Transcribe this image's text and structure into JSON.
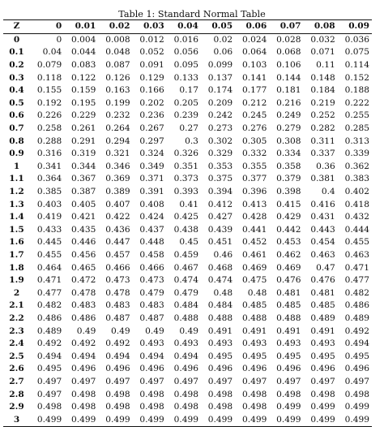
{
  "caption": "Table 1: Standard Normal Table",
  "header": [
    "Z",
    "0",
    "0.01",
    "0.02",
    "0.03",
    "0.04",
    "0.05",
    "0.06",
    "0.07",
    "0.08",
    "0.09"
  ],
  "rows": [
    [
      "0",
      "0",
      "0.004",
      "0.008",
      "0.012",
      "0.016",
      "0.02",
      "0.024",
      "0.028",
      "0.032",
      "0.036"
    ],
    [
      "0.1",
      "0.04",
      "0.044",
      "0.048",
      "0.052",
      "0.056",
      "0.06",
      "0.064",
      "0.068",
      "0.071",
      "0.075"
    ],
    [
      "0.2",
      "0.079",
      "0.083",
      "0.087",
      "0.091",
      "0.095",
      "0.099",
      "0.103",
      "0.106",
      "0.11",
      "0.114"
    ],
    [
      "0.3",
      "0.118",
      "0.122",
      "0.126",
      "0.129",
      "0.133",
      "0.137",
      "0.141",
      "0.144",
      "0.148",
      "0.152"
    ],
    [
      "0.4",
      "0.155",
      "0.159",
      "0.163",
      "0.166",
      "0.17",
      "0.174",
      "0.177",
      "0.181",
      "0.184",
      "0.188"
    ],
    [
      "0.5",
      "0.192",
      "0.195",
      "0.199",
      "0.202",
      "0.205",
      "0.209",
      "0.212",
      "0.216",
      "0.219",
      "0.222"
    ],
    [
      "0.6",
      "0.226",
      "0.229",
      "0.232",
      "0.236",
      "0.239",
      "0.242",
      "0.245",
      "0.249",
      "0.252",
      "0.255"
    ],
    [
      "0.7",
      "0.258",
      "0.261",
      "0.264",
      "0.267",
      "0.27",
      "0.273",
      "0.276",
      "0.279",
      "0.282",
      "0.285"
    ],
    [
      "0.8",
      "0.288",
      "0.291",
      "0.294",
      "0.297",
      "0.3",
      "0.302",
      "0.305",
      "0.308",
      "0.311",
      "0.313"
    ],
    [
      "0.9",
      "0.316",
      "0.319",
      "0.321",
      "0.324",
      "0.326",
      "0.329",
      "0.332",
      "0.334",
      "0.337",
      "0.339"
    ],
    [
      "1",
      "0.341",
      "0.344",
      "0.346",
      "0.349",
      "0.351",
      "0.353",
      "0.355",
      "0.358",
      "0.36",
      "0.362"
    ],
    [
      "1.1",
      "0.364",
      "0.367",
      "0.369",
      "0.371",
      "0.373",
      "0.375",
      "0.377",
      "0.379",
      "0.381",
      "0.383"
    ],
    [
      "1.2",
      "0.385",
      "0.387",
      "0.389",
      "0.391",
      "0.393",
      "0.394",
      "0.396",
      "0.398",
      "0.4",
      "0.402"
    ],
    [
      "1.3",
      "0.403",
      "0.405",
      "0.407",
      "0.408",
      "0.41",
      "0.412",
      "0.413",
      "0.415",
      "0.416",
      "0.418"
    ],
    [
      "1.4",
      "0.419",
      "0.421",
      "0.422",
      "0.424",
      "0.425",
      "0.427",
      "0.428",
      "0.429",
      "0.431",
      "0.432"
    ],
    [
      "1.5",
      "0.433",
      "0.435",
      "0.436",
      "0.437",
      "0.438",
      "0.439",
      "0.441",
      "0.442",
      "0.443",
      "0.444"
    ],
    [
      "1.6",
      "0.445",
      "0.446",
      "0.447",
      "0.448",
      "0.45",
      "0.451",
      "0.452",
      "0.453",
      "0.454",
      "0.455"
    ],
    [
      "1.7",
      "0.455",
      "0.456",
      "0.457",
      "0.458",
      "0.459",
      "0.46",
      "0.461",
      "0.462",
      "0.463",
      "0.463"
    ],
    [
      "1.8",
      "0.464",
      "0.465",
      "0.466",
      "0.466",
      "0.467",
      "0.468",
      "0.469",
      "0.469",
      "0.47",
      "0.471"
    ],
    [
      "1.9",
      "0.471",
      "0.472",
      "0.473",
      "0.473",
      "0.474",
      "0.474",
      "0.475",
      "0.476",
      "0.476",
      "0.477"
    ],
    [
      "2",
      "0.477",
      "0.478",
      "0.478",
      "0.479",
      "0.479",
      "0.48",
      "0.48",
      "0.481",
      "0.481",
      "0.482"
    ],
    [
      "2.1",
      "0.482",
      "0.483",
      "0.483",
      "0.483",
      "0.484",
      "0.484",
      "0.485",
      "0.485",
      "0.485",
      "0.486"
    ],
    [
      "2.2",
      "0.486",
      "0.486",
      "0.487",
      "0.487",
      "0.488",
      "0.488",
      "0.488",
      "0.488",
      "0.489",
      "0.489"
    ],
    [
      "2.3",
      "0.489",
      "0.49",
      "0.49",
      "0.49",
      "0.49",
      "0.491",
      "0.491",
      "0.491",
      "0.491",
      "0.492"
    ],
    [
      "2.4",
      "0.492",
      "0.492",
      "0.492",
      "0.493",
      "0.493",
      "0.493",
      "0.493",
      "0.493",
      "0.493",
      "0.494"
    ],
    [
      "2.5",
      "0.494",
      "0.494",
      "0.494",
      "0.494",
      "0.494",
      "0.495",
      "0.495",
      "0.495",
      "0.495",
      "0.495"
    ],
    [
      "2.6",
      "0.495",
      "0.496",
      "0.496",
      "0.496",
      "0.496",
      "0.496",
      "0.496",
      "0.496",
      "0.496",
      "0.496"
    ],
    [
      "2.7",
      "0.497",
      "0.497",
      "0.497",
      "0.497",
      "0.497",
      "0.497",
      "0.497",
      "0.497",
      "0.497",
      "0.497"
    ],
    [
      "2.8",
      "0.497",
      "0.498",
      "0.498",
      "0.498",
      "0.498",
      "0.498",
      "0.498",
      "0.498",
      "0.498",
      "0.498"
    ],
    [
      "2.9",
      "0.498",
      "0.498",
      "0.498",
      "0.498",
      "0.498",
      "0.498",
      "0.498",
      "0.499",
      "0.499",
      "0.499"
    ],
    [
      "3",
      "0.499",
      "0.499",
      "0.499",
      "0.499",
      "0.499",
      "0.499",
      "0.499",
      "0.499",
      "0.499",
      "0.499"
    ]
  ]
}
